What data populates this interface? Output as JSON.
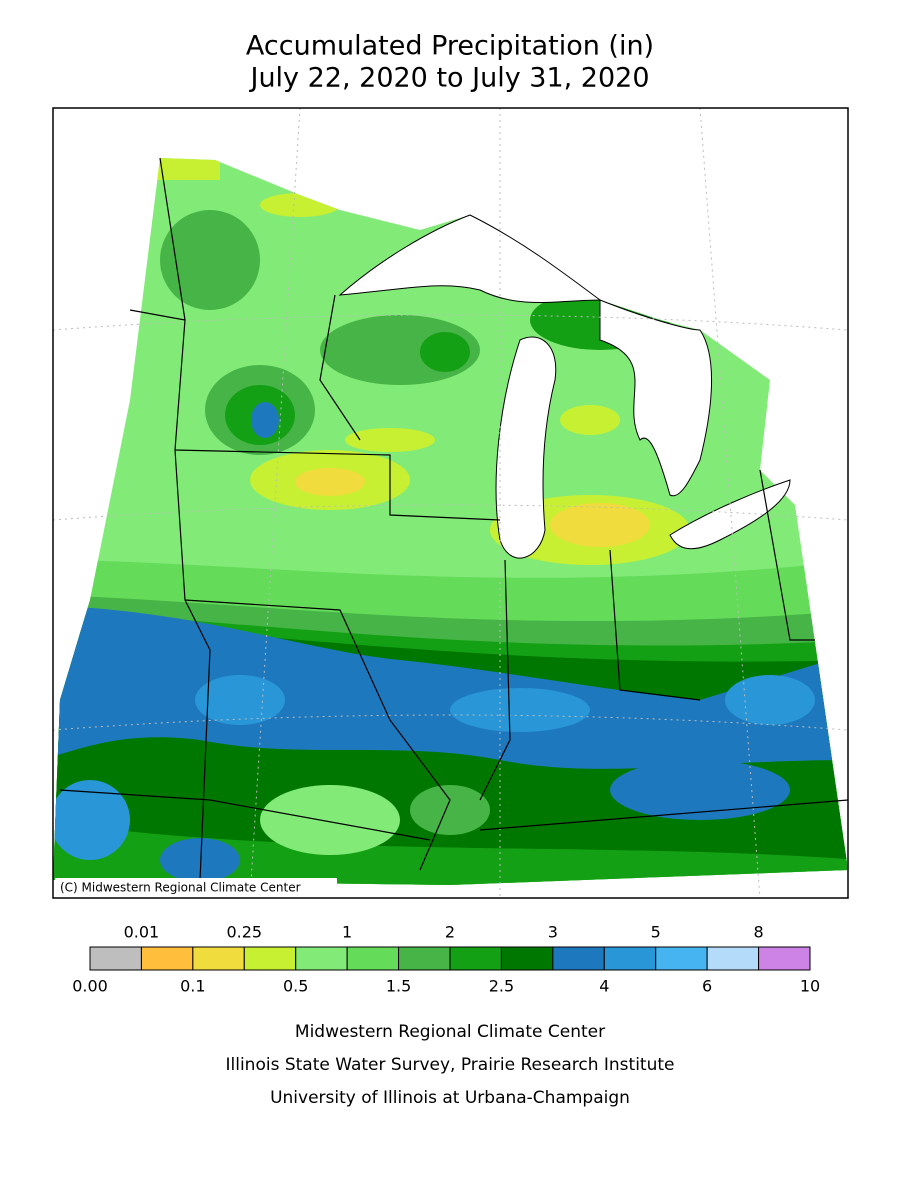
{
  "title": [
    "Accumulated Precipitation (in)",
    "July 22, 2020 to July 31, 2020"
  ],
  "copyright": "(C) Midwestern Regional Climate Center",
  "legend": {
    "breaks": [
      {
        "value": 0,
        "label": "0.00"
      },
      0.01,
      0.1,
      0.25,
      0.5,
      1,
      1.5,
      2,
      2.5,
      3,
      4,
      5,
      6,
      8,
      10
    ],
    "colors": [
      "#bebebe",
      "#ffbe3c",
      "#f0dc3c",
      "#c8f032",
      "#82eb78",
      "#64dc5a",
      "#46b446",
      "#14a014",
      "#007800",
      "#1e78be",
      "#2896d7",
      "#46b4f0",
      "#b4dcfa",
      "#cd82e6"
    ]
  },
  "footer": [
    "Midwestern Regional Climate Center",
    "Illinois State Water Survey, Prairie Research Institute",
    "University of Illinois at Urbana-Champaign"
  ]
}
